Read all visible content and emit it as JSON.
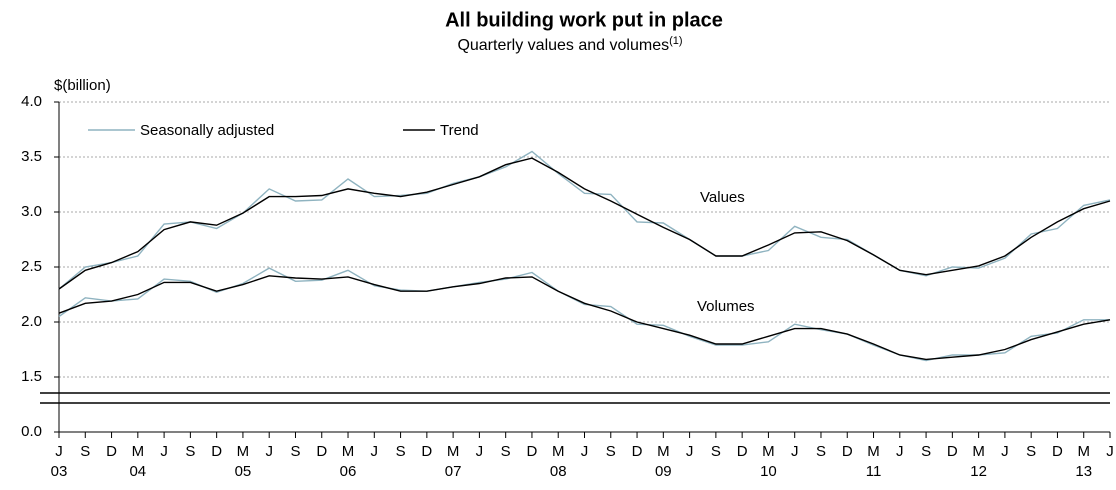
{
  "chart_data": {
    "type": "line",
    "title": "All building work put in place",
    "subtitle": "Quarterly values and volumes",
    "subtitle_note": "(1)",
    "y_label": "$(billion)",
    "categories": [
      "J",
      "S",
      "D",
      "M",
      "J",
      "S",
      "D",
      "M",
      "J",
      "S",
      "D",
      "M",
      "J",
      "S",
      "D",
      "M",
      "J",
      "S",
      "D",
      "M",
      "J",
      "S",
      "D",
      "M",
      "J",
      "S",
      "D",
      "M",
      "J",
      "S",
      "D",
      "M",
      "J",
      "S",
      "D",
      "M",
      "J",
      "S",
      "D",
      "M",
      "J"
    ],
    "year_labels": [
      "03",
      null,
      null,
      "04",
      null,
      null,
      null,
      "05",
      null,
      null,
      null,
      "06",
      null,
      null,
      null,
      "07",
      null,
      null,
      null,
      "08",
      null,
      null,
      null,
      "09",
      null,
      null,
      null,
      "10",
      null,
      null,
      null,
      "11",
      null,
      null,
      null,
      "12",
      null,
      null,
      null,
      "13",
      null
    ],
    "legend": [
      {
        "name": "Seasonally adjusted",
        "color": "#8fb3c0"
      },
      {
        "name": "Trend",
        "color": "#000000"
      }
    ],
    "series": [
      {
        "name": "Values",
        "sa": [
          2.3,
          2.5,
          2.54,
          2.6,
          2.89,
          2.91,
          2.85,
          2.99,
          3.21,
          3.1,
          3.11,
          3.3,
          3.14,
          3.15,
          3.17,
          3.26,
          3.32,
          3.41,
          3.55,
          3.35,
          3.17,
          3.16,
          2.91,
          2.9,
          2.75,
          2.6,
          2.6,
          2.65,
          2.87,
          2.77,
          2.75,
          2.61,
          2.47,
          2.42,
          2.5,
          2.49,
          2.58,
          2.8,
          2.85,
          3.06,
          3.11
        ],
        "trend": [
          2.3,
          2.47,
          2.54,
          2.64,
          2.84,
          2.91,
          2.88,
          2.99,
          3.14,
          3.14,
          3.15,
          3.21,
          3.17,
          3.14,
          3.18,
          3.25,
          3.32,
          3.43,
          3.49,
          3.36,
          3.21,
          3.1,
          2.98,
          2.86,
          2.75,
          2.6,
          2.6,
          2.7,
          2.81,
          2.82,
          2.74,
          2.61,
          2.47,
          2.43,
          2.47,
          2.51,
          2.6,
          2.77,
          2.91,
          3.03,
          3.1
        ]
      },
      {
        "name": "Volumes",
        "sa": [
          2.05,
          2.22,
          2.19,
          2.21,
          2.39,
          2.37,
          2.27,
          2.35,
          2.49,
          2.37,
          2.38,
          2.47,
          2.33,
          2.29,
          2.28,
          2.32,
          2.36,
          2.39,
          2.45,
          2.28,
          2.16,
          2.14,
          1.98,
          1.97,
          1.87,
          1.79,
          1.79,
          1.82,
          1.98,
          1.93,
          1.89,
          1.79,
          1.7,
          1.65,
          1.7,
          1.7,
          1.72,
          1.87,
          1.9,
          2.02,
          2.02
        ],
        "trend": [
          2.08,
          2.17,
          2.19,
          2.25,
          2.36,
          2.36,
          2.28,
          2.34,
          2.42,
          2.4,
          2.39,
          2.41,
          2.34,
          2.28,
          2.28,
          2.32,
          2.35,
          2.4,
          2.41,
          2.28,
          2.17,
          2.1,
          2.0,
          1.94,
          1.88,
          1.8,
          1.8,
          1.87,
          1.94,
          1.94,
          1.89,
          1.8,
          1.7,
          1.66,
          1.68,
          1.7,
          1.75,
          1.84,
          1.91,
          1.98,
          2.02
        ]
      }
    ],
    "ylim": [
      0,
      4.0
    ],
    "axis_break": [
      0,
      1.3
    ],
    "yticks": [
      {
        "value": 0,
        "label": "0.0"
      },
      1.5,
      {
        "value": 2,
        "label": "2.0"
      },
      2.5,
      {
        "value": 3,
        "label": "3.0"
      },
      3.5,
      {
        "value": 4,
        "label": "4.0"
      }
    ],
    "grid": true
  }
}
